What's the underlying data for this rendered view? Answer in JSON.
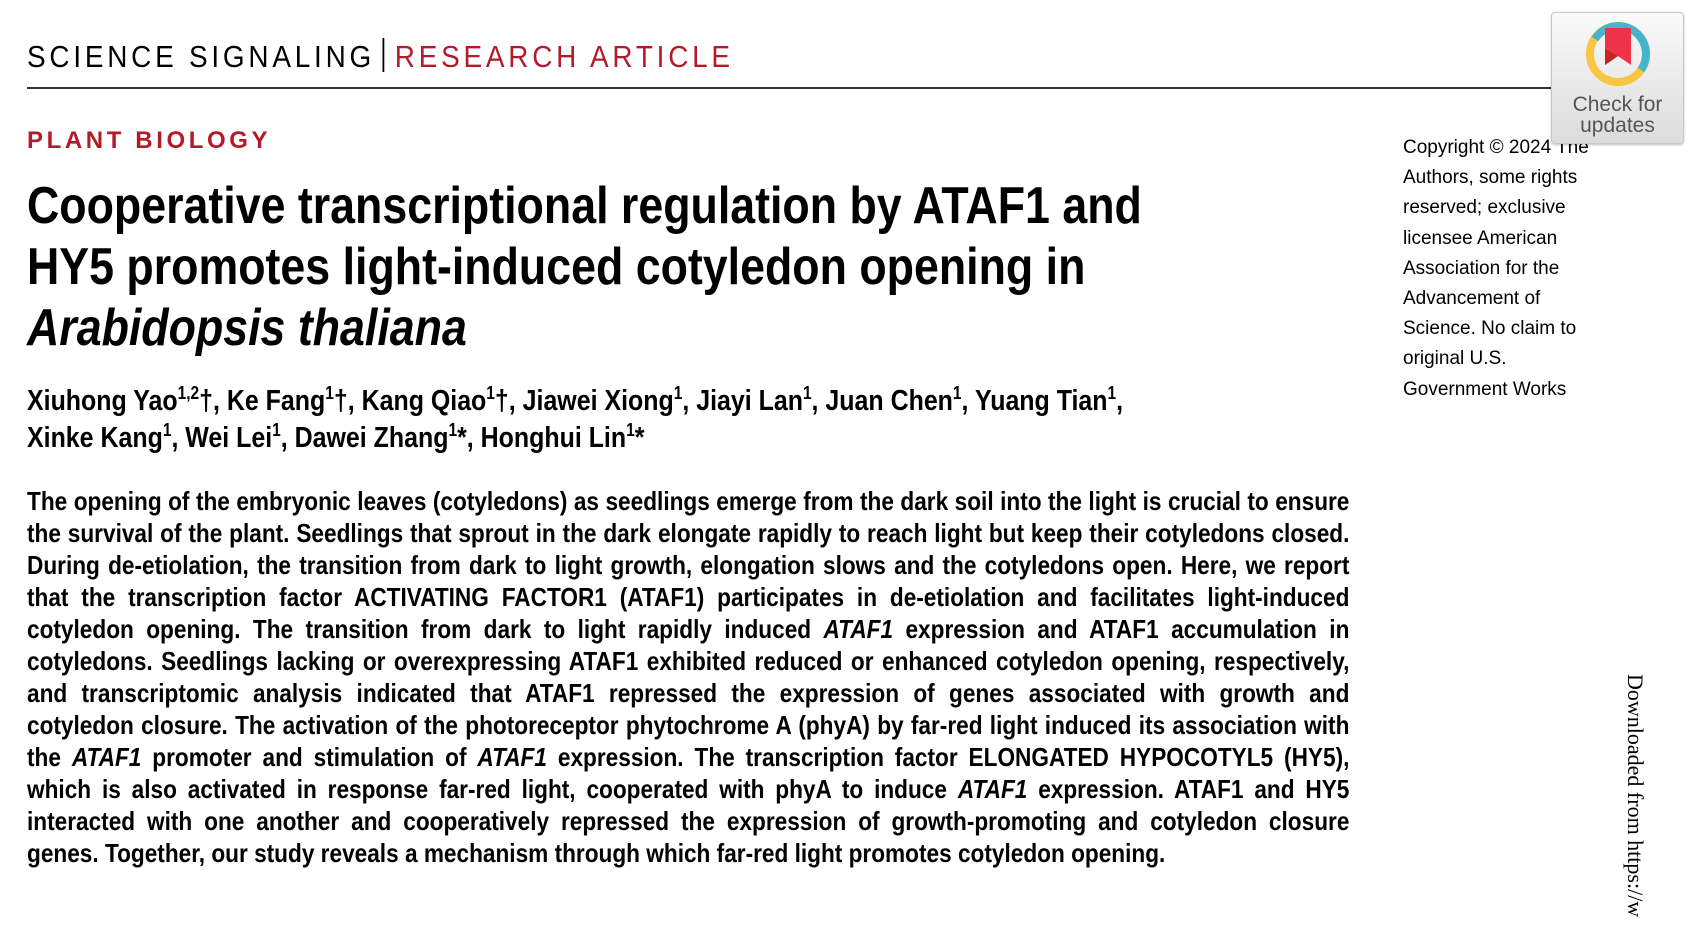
{
  "header": {
    "journal": "SCIENCE SIGNALING",
    "article_type": "RESEARCH ARTICLE",
    "accent_color": "#b31b2a"
  },
  "section": "PLANT BIOLOGY",
  "title": {
    "line1": "Cooperative transcriptional regulation by ATAF1 and",
    "line2": "HY5 promotes light-induced cotyledon opening in",
    "line3_italic": "Arabidopsis thaliana"
  },
  "authors": [
    {
      "name": "Xiuhong Yao",
      "aff": "1,2",
      "mark": "†, "
    },
    {
      "name": "Ke Fang",
      "aff": "1",
      "mark": "†, "
    },
    {
      "name": "Kang Qiao",
      "aff": "1",
      "mark": "†, "
    },
    {
      "name": "Jiawei Xiong",
      "aff": "1",
      "mark": ", "
    },
    {
      "name": "Jiayi Lan",
      "aff": "1",
      "mark": ", "
    },
    {
      "name": "Juan Chen",
      "aff": "1",
      "mark": ", "
    },
    {
      "name": "Yuang Tian",
      "aff": "1",
      "mark": ", "
    },
    {
      "name": "Xinke Kang",
      "aff": "1",
      "mark": ", "
    },
    {
      "name": "Wei Lei",
      "aff": "1",
      "mark": ", "
    },
    {
      "name": "Dawei Zhang",
      "aff": "1",
      "mark": "*, "
    },
    {
      "name": "Honghui Lin",
      "aff": "1",
      "mark": "*"
    }
  ],
  "abstract": [
    {
      "text": "The opening of the embryonic leaves (cotyledons) as seedlings emerge from the dark soil into the light is crucial to ensure the survival of the plant. Seedlings that sprout in the dark elongate rapidly to reach light but keep their cotyledons closed. During de-etiolation, the transition from dark to light growth, elongation slows and the cotyledons open. Here, we report that the transcription factor ACTIVATING FACTOR1 (ATAF1) participates in de-etiolation and facilitates light-induced cotyledon opening. The transition from dark to light rapidly induced ",
      "italic": false
    },
    {
      "text": "ATAF1",
      "italic": true
    },
    {
      "text": " expression and ATAF1 accumulation in cotyledons. Seedlings lacking or overexpressing ATAF1 exhibited reduced or enhanced cotyledon opening, respectively, and transcriptomic analysis indicated that ATAF1 repressed the expression of genes associated with growth and cotyledon closure. The activation of the photoreceptor phytochrome A (phyA) by far-red light induced its association with the ",
      "italic": false
    },
    {
      "text": "ATAF1",
      "italic": true
    },
    {
      "text": " promoter and stimulation of ",
      "italic": false
    },
    {
      "text": "ATAF1",
      "italic": true
    },
    {
      "text": " expression. The transcription factor ELONGATED HYPOCOTYL5 (HY5), which is also activated in response far-red light, cooperated with phyA to induce ",
      "italic": false
    },
    {
      "text": "ATAF1",
      "italic": true
    },
    {
      "text": " expression. ATAF1 and HY5 interacted with one another and cooperatively repressed the expression of growth-promoting and cotyledon closure genes. Together, our study reveals a mechanism through which far-red light promotes cotyledon opening.",
      "italic": false
    }
  ],
  "copyright": "Copyright © 2024 The Authors, some rights reserved; exclusive licensee American Association for the Advancement of Science. No claim to original U.S. Government Works",
  "badge": {
    "label_line1": "Check for",
    "label_line2": "updates",
    "icon": "bookmark-ring-icon"
  },
  "side_watermark": "Downloaded from https://w"
}
